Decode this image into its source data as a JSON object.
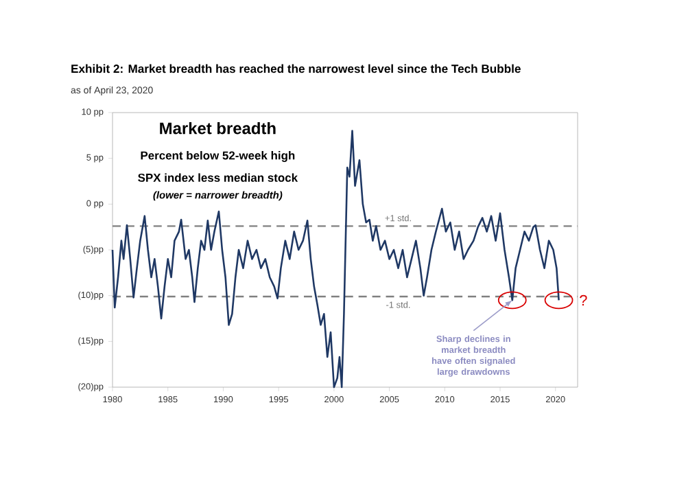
{
  "chart_data": {
    "type": "line",
    "title": "Exhibit 2: Market breadth has reached the narrowest level since the Tech Bubble",
    "subtitle": "as of April 23, 2020",
    "x": [
      1980.0,
      1980.2,
      1980.5,
      1980.8,
      1981.0,
      1981.3,
      1981.6,
      1981.9,
      1982.2,
      1982.5,
      1982.9,
      1983.2,
      1983.5,
      1983.8,
      1984.1,
      1984.4,
      1984.7,
      1985.0,
      1985.3,
      1985.6,
      1986.0,
      1986.2,
      1986.6,
      1986.9,
      1987.2,
      1987.4,
      1987.7,
      1988.0,
      1988.3,
      1988.6,
      1988.9,
      1989.2,
      1989.6,
      1989.9,
      1990.2,
      1990.5,
      1990.8,
      1991.1,
      1991.4,
      1991.8,
      1992.2,
      1992.6,
      1993.0,
      1993.4,
      1993.8,
      1994.2,
      1994.6,
      1994.9,
      1995.2,
      1995.6,
      1996.0,
      1996.4,
      1996.8,
      1997.2,
      1997.6,
      1997.9,
      1998.2,
      1998.5,
      1998.8,
      1999.1,
      1999.4,
      1999.7,
      2000.0,
      2000.3,
      2000.5,
      2000.7,
      2000.9,
      2001.2,
      2001.4,
      2001.65,
      2001.9,
      2002.3,
      2002.6,
      2002.9,
      2003.2,
      2003.5,
      2003.8,
      2004.2,
      2004.6,
      2005.0,
      2005.4,
      2005.8,
      2006.2,
      2006.6,
      2007.0,
      2007.4,
      2007.8,
      2008.1,
      2008.4,
      2008.8,
      2009.2,
      2009.75,
      2010.1,
      2010.5,
      2010.9,
      2011.3,
      2011.7,
      2012.1,
      2012.6,
      2013.0,
      2013.4,
      2013.8,
      2014.2,
      2014.6,
      2015.0,
      2015.4,
      2015.8,
      2016.1,
      2016.4,
      2016.8,
      2017.2,
      2017.6,
      2018.0,
      2018.2,
      2018.6,
      2019.0,
      2019.4,
      2019.8,
      2020.1,
      2020.3
    ],
    "series": [
      {
        "color": "#1f3864",
        "values": [
          -5,
          -11.3,
          -8,
          -4,
          -6,
          -2.3,
          -6,
          -10.2,
          -7,
          -4,
          -1.3,
          -5,
          -8,
          -6,
          -9,
          -12.5,
          -9,
          -6,
          -8,
          -4,
          -3,
          -1.7,
          -6,
          -5,
          -8,
          -10.7,
          -7,
          -4,
          -5,
          -1.8,
          -5,
          -3,
          -0.8,
          -5,
          -8,
          -13.2,
          -12,
          -8,
          -5,
          -7,
          -4,
          -6,
          -5,
          -7,
          -6,
          -8,
          -9,
          -10.3,
          -7,
          -4,
          -6,
          -3,
          -5,
          -4,
          -1.8,
          -6,
          -9,
          -11,
          -13.2,
          -12,
          -16.7,
          -14,
          -20,
          -19,
          -16.7,
          -20,
          -12,
          4,
          3,
          8,
          2,
          4.8,
          0,
          -2,
          -1.7,
          -4,
          -2.4,
          -5,
          -4,
          -6,
          -5,
          -7,
          -5,
          -8,
          -6,
          -4,
          -7,
          -10,
          -8,
          -5,
          -3,
          -0.5,
          -3,
          -2,
          -5,
          -3,
          -6,
          -5,
          -4,
          -2.5,
          -1.5,
          -3,
          -1.3,
          -4,
          -1.0,
          -5,
          -8,
          -10.5,
          -7,
          -5,
          -3,
          -4,
          -2.5,
          -2.3,
          -5,
          -7,
          -4,
          -5,
          -7,
          -10.5
        ]
      }
    ],
    "xlim": [
      1980,
      2022
    ],
    "ylim": [
      -20,
      10
    ],
    "xticks": [
      1980,
      1985,
      1990,
      1995,
      2000,
      2005,
      2010,
      2015,
      2020
    ],
    "yticks": [
      {
        "value": 10,
        "label": "10 pp"
      },
      {
        "value": 5,
        "label": "5 pp"
      },
      {
        "value": 0,
        "label": "0 pp"
      },
      {
        "value": -5,
        "label": "(5)pp"
      },
      {
        "value": -10,
        "label": "(10)pp"
      },
      {
        "value": -15,
        "label": "(15)pp"
      },
      {
        "value": -20,
        "label": "(20)pp"
      }
    ],
    "ref_lines": [
      {
        "axis": "y",
        "value": -2.4,
        "label": "+1 std.",
        "color": "#808080",
        "line_style": "dashed"
      },
      {
        "axis": "y",
        "value": -10.1,
        "label": "-1 std.",
        "color": "#808080",
        "line_style": "dashed"
      }
    ],
    "annotations": [
      "**Market breadth**",
      "Percent below 52-week high",
      "SPX index less median stock",
      "*(lower = narrower  breadth)*",
      {
        "text": "Sharp declines in market breadth have often signaled large drawdowns",
        "x": 2016.1,
        "y": -10.5
      },
      {
        "text": "?",
        "x": 2020.3,
        "y": -10.5
      }
    ],
    "grid": false,
    "marker": "none",
    "line_style": "solid"
  }
}
